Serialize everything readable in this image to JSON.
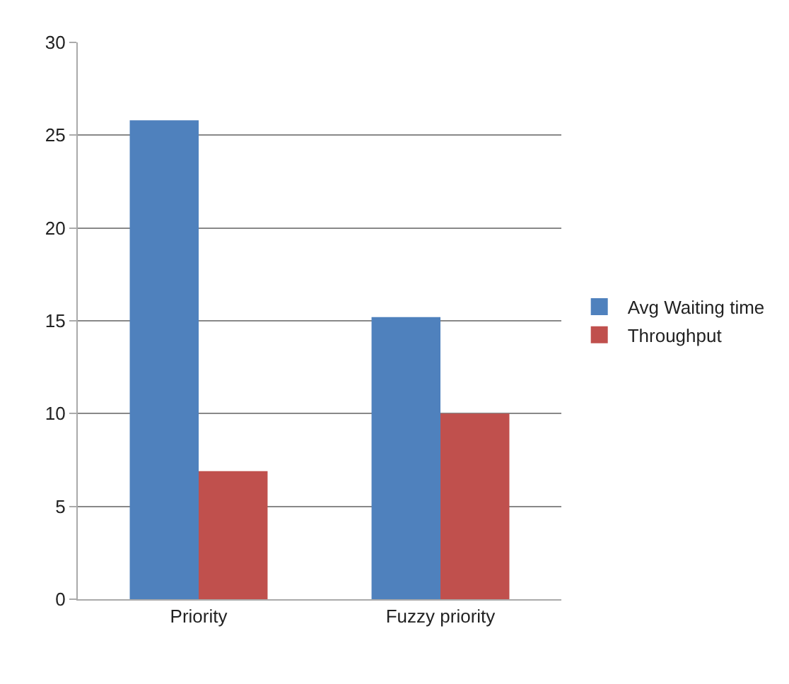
{
  "chart_data": {
    "type": "bar",
    "categories": [
      "Priority",
      "Fuzzy priority"
    ],
    "series": [
      {
        "name": "Avg Waiting time",
        "color": "#4f81bd",
        "values": [
          25.8,
          15.2
        ]
      },
      {
        "name": "Throughput",
        "color": "#c0504d",
        "values": [
          6.9,
          10
        ]
      }
    ],
    "ylim": [
      0,
      30
    ],
    "yticks": [
      0,
      5,
      10,
      15,
      20,
      25,
      30
    ],
    "grid": "y",
    "legend": "right"
  }
}
